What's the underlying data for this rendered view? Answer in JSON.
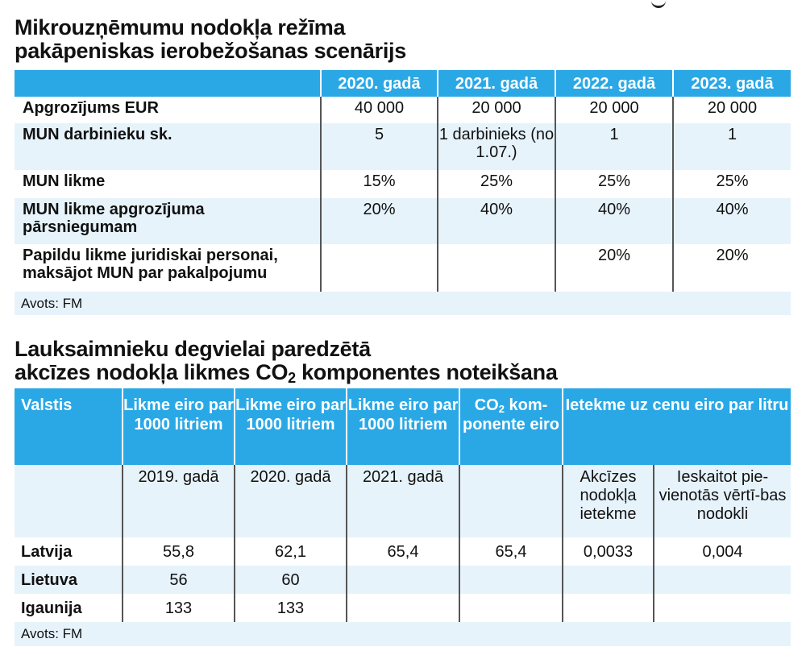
{
  "table1": {
    "title_line1": "Mikrouzņēmumu nodokļa režīma",
    "title_line2": "pakāpeniskas ierobežošanas scenārijs",
    "headers": [
      "",
      "2020. gadā",
      "2021. gadā",
      "2022. gadā",
      "2023. gadā"
    ],
    "rows": [
      {
        "label": "Apgrozījums EUR",
        "values": [
          "40 000",
          "20 000",
          "20 000",
          "20 000"
        ]
      },
      {
        "label": "MUN darbinieku sk.",
        "values": [
          "5",
          "1 darbinieks (no 1.07.)",
          "1",
          "1"
        ]
      },
      {
        "label": "MUN likme",
        "values": [
          "15%",
          "25%",
          "25%",
          "25%"
        ]
      },
      {
        "label": "MUN likme apgrozījuma pārsniegumam",
        "values": [
          "20%",
          "40%",
          "40%",
          "40%"
        ]
      },
      {
        "label": "Papildu likme juridiskai personai, maksājot MUN par pakalpojumu",
        "values": [
          "",
          "",
          "20%",
          "20%"
        ]
      }
    ],
    "source": "Avots: FM"
  },
  "table2": {
    "title_line1": "Lauksaimnieku degvielai paredzētā",
    "title_line2_pre": "akcīzes nodokļa likmes CO",
    "title_line2_sub": "2",
    "title_line2_post": " komponentes noteikšana",
    "headers": {
      "country": "Valstis",
      "rate_2019": "Likme eiro par 1000 litriem",
      "rate_2020": "Likme eiro par 1000 litriem",
      "rate_2021": "Likme eiro par 1000 litriem",
      "co2_pre": "CO",
      "co2_sub": "2",
      "co2_post": " kom-ponente eiro",
      "impact": "Ietekme uz cenu eiro par litru"
    },
    "subheaders": {
      "rate_2019": "2019. gadā",
      "rate_2020": "2020. gadā",
      "rate_2021": "2021. gadā",
      "excise": "Akcīzes nodokļa ietekme",
      "vat": "Ieskaitot pie-vienotās vērtī-bas nodokli"
    },
    "rows": [
      {
        "country": "Latvija",
        "values": [
          "55,8",
          "62,1",
          "65,4",
          "65,4",
          "0,0033",
          "0,004"
        ]
      },
      {
        "country": "Lietuva",
        "values": [
          "56",
          "60",
          "",
          "",
          "",
          ""
        ]
      },
      {
        "country": "Igaunija",
        "values": [
          "133",
          "133",
          "",
          "",
          "",
          ""
        ]
      }
    ],
    "source": "Avots: FM"
  }
}
